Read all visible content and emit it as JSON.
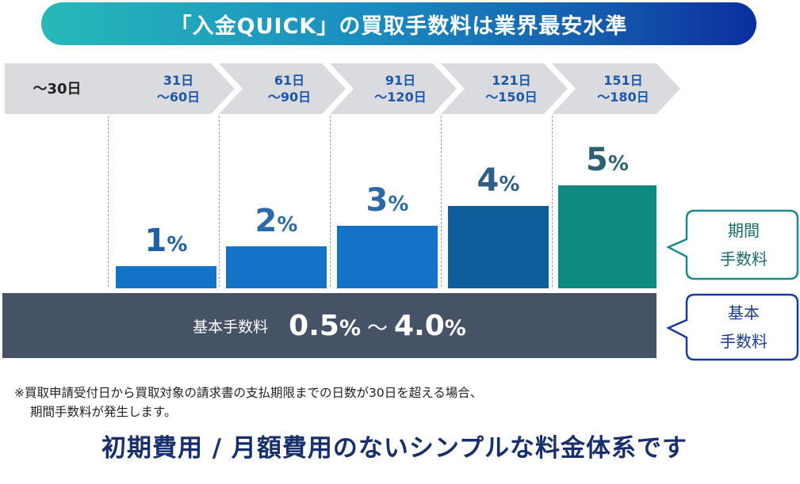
{
  "header": {
    "title": "「入金QUICK」の買取手数料は業界最安水準"
  },
  "chart_data": {
    "type": "bar",
    "categories": [
      [
        "31日",
        "～60日"
      ],
      [
        "61日",
        "～90日"
      ],
      [
        "91日",
        "～120日"
      ],
      [
        "121日",
        "～150日"
      ],
      [
        "151日",
        "～180日"
      ]
    ],
    "values": [
      1,
      2,
      3,
      4,
      5
    ],
    "value_unit": "%",
    "first_period_label": "～30日",
    "bar_colors": [
      "#1473c6",
      "#1473c6",
      "#1473c6",
      "#0d5e9b",
      "#0f8a80"
    ],
    "label_colors": [
      "#1e5fa6",
      "#2a6aa5",
      "#2a6aa5",
      "#2f5f86",
      "#2a6070"
    ]
  },
  "base_fee": {
    "label": "基本手数料",
    "min": "0.5",
    "max": "4.0",
    "unit": "%",
    "tilde": "～"
  },
  "callouts": {
    "period_fee": {
      "line1": "期間",
      "line2": "手数料",
      "border_color": "#1a8a8a"
    },
    "base_fee": {
      "line1": "基本",
      "line2": "手数料",
      "border_color": "#1a3aa0"
    }
  },
  "note": {
    "line1": "※買取申請受付日から買取対象の請求書の支払期限までの日数が30日を超える場合、",
    "line2": "期間手数料が発生します。"
  },
  "tagline": "初期費用 / 月額費用のないシンプルな料金体系です"
}
